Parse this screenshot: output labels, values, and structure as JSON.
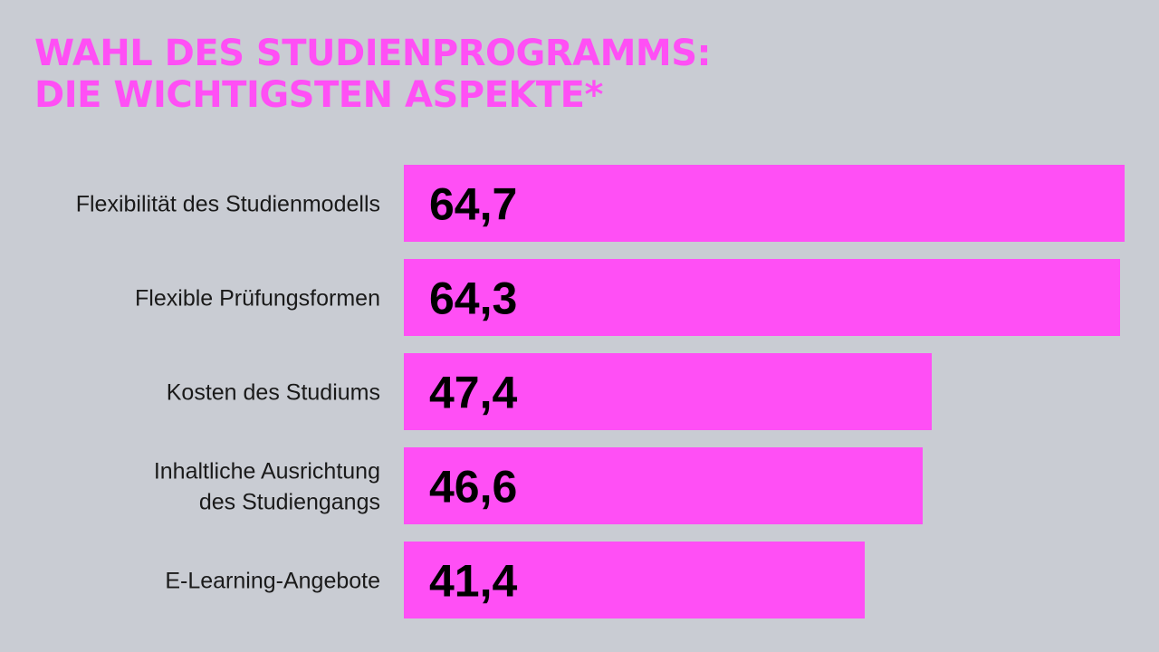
{
  "title_lines": [
    "WAHL DES STUDIENPROGRAMMS:",
    "DIE WICHTIGSTEN ASPEKTE*"
  ],
  "colors": {
    "background": "#c9ccd3",
    "bar": "#ff4ff5",
    "title": "#ff4ff5",
    "value_text": "#000000",
    "category_text": "#1a1a1a"
  },
  "chart_data": {
    "type": "bar",
    "orientation": "horizontal",
    "title": "WAHL DES STUDIENPROGRAMMS: DIE WICHTIGSTEN ASPEKTE*",
    "categories": [
      [
        "Flexibilität des Studienmodells"
      ],
      [
        "Flexible Prüfungsformen"
      ],
      [
        "Kosten des Studiums"
      ],
      [
        "Inhaltliche Ausrichtung",
        "des Studiengangs"
      ],
      [
        "E-Learning-Angebote"
      ]
    ],
    "values": [
      64.7,
      64.3,
      47.4,
      46.6,
      41.4
    ],
    "value_labels": [
      "64,7",
      "64,3",
      "47,4",
      "46,6",
      "41,4"
    ],
    "xlim": [
      0,
      64.7
    ],
    "grid": false,
    "legend": "none"
  }
}
